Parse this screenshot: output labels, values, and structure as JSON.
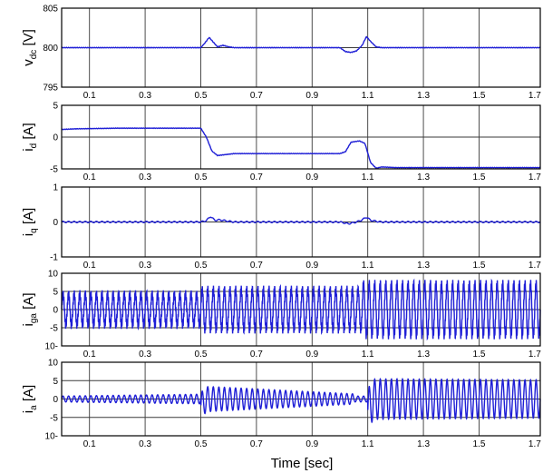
{
  "figure": {
    "xlabel": "Time [sec]"
  },
  "chart_data": [
    {
      "type": "line",
      "ylabel": "v",
      "ylabel_sub": "dc",
      "ylabel_unit": " [V]",
      "ylim": [
        795,
        805
      ],
      "yticks": [
        "805",
        "800",
        "795"
      ],
      "xlim": [
        0,
        1.7
      ],
      "xticks": [
        "0.1",
        "0.3",
        "0.5",
        "0.7",
        "0.9",
        "1.1",
        "1.3",
        "1.5",
        "1.7"
      ],
      "grid": true,
      "line_color": "#1f1fd6",
      "series": [
        {
          "x": [
            0,
            0.5,
            0.515,
            0.53,
            0.545,
            0.56,
            0.58,
            0.6,
            0.62,
            1.0,
            1.02,
            1.04,
            1.06,
            1.08,
            1.095,
            1.11,
            1.13,
            1.15,
            1.2,
            1.7
          ],
          "y": [
            800,
            800,
            800.6,
            801.3,
            800.7,
            800.1,
            800.3,
            800.1,
            800,
            800,
            799.5,
            799.4,
            799.6,
            800.3,
            801.4,
            800.8,
            800.1,
            800,
            800,
            800
          ]
        }
      ]
    },
    {
      "type": "line",
      "ylabel": "i",
      "ylabel_sub": "d",
      "ylabel_unit": " [A]",
      "ylim": [
        -5,
        5
      ],
      "yticks": [
        "5",
        "0",
        "-5"
      ],
      "xlim": [
        0,
        1.7
      ],
      "xticks": [
        "0.1",
        "0.3",
        "0.5",
        "0.7",
        "0.9",
        "1.1",
        "1.3",
        "1.5",
        "1.7"
      ],
      "grid": true,
      "line_color": "#1f1fd6",
      "series": [
        {
          "x": [
            0,
            0.05,
            0.2,
            0.5,
            0.52,
            0.54,
            0.56,
            0.58,
            0.62,
            0.8,
            1.0,
            1.02,
            1.04,
            1.07,
            1.09,
            1.11,
            1.13,
            1.15,
            1.2,
            1.7
          ],
          "y": [
            1.2,
            1.3,
            1.4,
            1.4,
            0,
            -2.2,
            -2.9,
            -2.8,
            -2.6,
            -2.6,
            -2.6,
            -2.3,
            -0.8,
            -0.6,
            -1,
            -4,
            -4.9,
            -4.7,
            -4.8,
            -4.8
          ]
        }
      ]
    },
    {
      "type": "line",
      "ylabel": "i",
      "ylabel_sub": "q",
      "ylabel_unit": " [A]",
      "ylim": [
        -1,
        1
      ],
      "yticks": [
        "1",
        "0",
        "-1"
      ],
      "xlim": [
        0,
        1.7
      ],
      "xticks": [
        "0.1",
        "0.3",
        "0.5",
        "0.7",
        "0.9",
        "1.1",
        "1.3",
        "1.5",
        "1.7"
      ],
      "grid": true,
      "line_color": "#1f1fd6",
      "series": [
        {
          "x": [
            0,
            0.5,
            0.52,
            0.535,
            0.55,
            0.57,
            0.6,
            0.62,
            1.0,
            1.03,
            1.06,
            1.08,
            1.095,
            1.11,
            1.13,
            1.15,
            1.7
          ],
          "y": [
            0,
            0,
            0.04,
            0.16,
            0.05,
            0.06,
            0.02,
            0,
            0,
            -0.05,
            0,
            0.06,
            0.14,
            0.05,
            0.02,
            0,
            0
          ]
        }
      ],
      "ripple": 0.02
    },
    {
      "type": "line",
      "ylabel": "i",
      "ylabel_sub": "ga",
      "ylabel_unit": " [A]",
      "ylim": [
        -10,
        10
      ],
      "yticks": [
        "10",
        "5",
        "0",
        "-5",
        "10-"
      ],
      "xlim": [
        0,
        1.7
      ],
      "xticks": [
        "0.1",
        "0.3",
        "0.5",
        "0.7",
        "0.9",
        "1.1",
        "1.3",
        "1.5",
        "1.7"
      ],
      "grid": true,
      "line_color": "#1f1fd6",
      "waveform": {
        "frequency_hz": 50,
        "segments": [
          {
            "x_start": 0,
            "x_end": 0.5,
            "amplitude": 4.3
          },
          {
            "x_start": 0.5,
            "x_end": 1.08,
            "amplitude": 5.6
          },
          {
            "x_start": 1.08,
            "x_end": 1.7,
            "amplitude": 7.2
          }
        ],
        "switching_ripple": 1.1
      }
    },
    {
      "type": "line",
      "ylabel": "i",
      "ylabel_sub": "a",
      "ylabel_unit": " [A]",
      "ylim": [
        -10,
        10
      ],
      "yticks": [
        "10",
        "5",
        "0",
        "-5",
        "10-"
      ],
      "xlim": [
        0,
        1.7
      ],
      "xticks": [
        "0.1",
        "0.3",
        "0.5",
        "0.7",
        "0.9",
        "1.1",
        "1.3",
        "1.5",
        "1.7"
      ],
      "grid": true,
      "line_color": "#1f1fd6",
      "waveform": {
        "frequency_hz": 50,
        "segments": [
          {
            "x_start": 0,
            "x_end": 0.5,
            "amplitude_start": 0.8,
            "amplitude_end": 1.3
          },
          {
            "x_start": 0.5,
            "x_end": 1.05,
            "amplitude_start": 3.5,
            "amplitude_end": 1.4,
            "transient_peak": -4.5
          },
          {
            "x_start": 1.05,
            "x_end": 1.1,
            "amplitude_start": 0.8,
            "amplitude_end": 0.8
          },
          {
            "x_start": 1.1,
            "x_end": 1.7,
            "amplitude_start": 5.5,
            "amplitude_end": 5.2,
            "transient_peak": -7
          }
        ]
      }
    }
  ]
}
